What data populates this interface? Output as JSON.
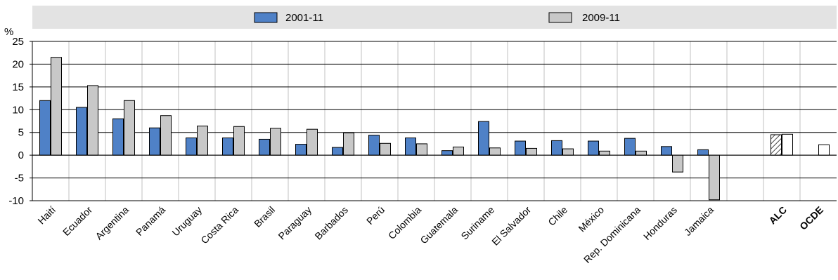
{
  "chart_data": {
    "type": "bar",
    "ylabel": "%",
    "ylim": [
      -10,
      25
    ],
    "yticks": [
      25,
      20,
      15,
      10,
      5,
      0,
      -5,
      -10
    ],
    "legend_position": "top",
    "categories": [
      "Haití",
      "Ecuador",
      "Argentina",
      "Panamá",
      "Uruguay",
      "Costa Rica",
      "Brasil",
      "Paraguay",
      "Barbados",
      "Perú",
      "Colombia",
      "Guatemala",
      "Suriname",
      "El Salvador",
      "Chile",
      "México",
      "Rep. Dominicana",
      "Honduras",
      "Jamaica",
      "",
      "ALC",
      "OCDE"
    ],
    "series": [
      {
        "name": "2001-11",
        "values": [
          12.0,
          10.5,
          8.0,
          6.0,
          3.8,
          3.8,
          3.5,
          2.4,
          1.7,
          4.4,
          3.8,
          1.0,
          7.4,
          3.1,
          3.2,
          3.1,
          3.7,
          1.9,
          1.2,
          null,
          4.5,
          null
        ]
      },
      {
        "name": "2009-11",
        "values": [
          21.5,
          15.3,
          12.0,
          8.7,
          6.4,
          6.3,
          5.9,
          5.7,
          4.9,
          2.6,
          2.5,
          1.8,
          1.6,
          1.5,
          1.4,
          0.9,
          0.9,
          -3.7,
          -9.8,
          null,
          4.6,
          2.3
        ]
      }
    ],
    "highlighted_categories": [
      "ALC",
      "OCDE"
    ],
    "colors": {
      "series1": "#4f81c7",
      "series2": "#c8c8c8",
      "legend_band": "#e3e3e3",
      "grid_vertical": "#c0c0c0",
      "axis": "#000000"
    }
  }
}
